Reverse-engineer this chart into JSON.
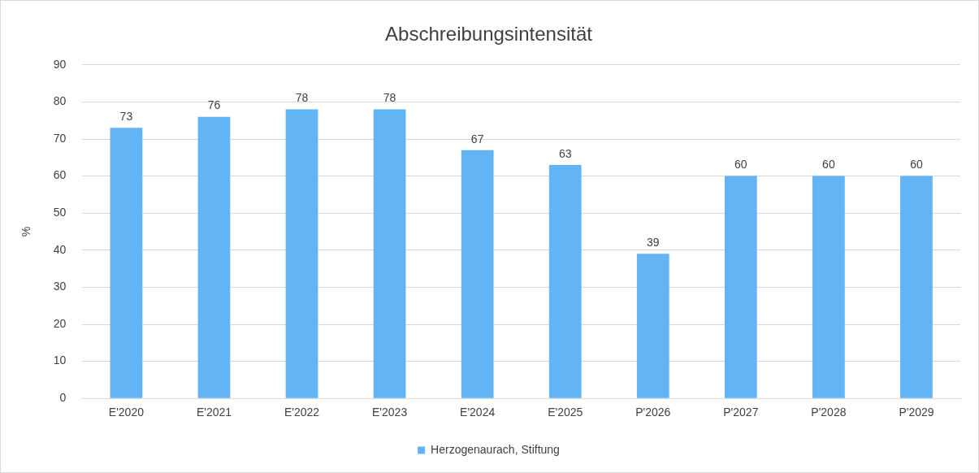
{
  "chart_data": {
    "type": "bar",
    "title": "Abschreibungsintensität",
    "ylabel": "%",
    "categories": [
      "E'2020",
      "E'2021",
      "E'2022",
      "E'2023",
      "E'2024",
      "E'2025",
      "P'2026",
      "P'2027",
      "P'2028",
      "P'2029"
    ],
    "series": [
      {
        "name": "Herzogenaurach, Stiftung",
        "color": "#63b4f5",
        "values": [
          73,
          76,
          78,
          78,
          67,
          63,
          39,
          60,
          60,
          60
        ]
      }
    ],
    "ylim": [
      0,
      90
    ],
    "yticks": [
      0,
      10,
      20,
      30,
      40,
      50,
      60,
      70,
      80,
      90
    ],
    "grid": "y",
    "legend": "bottom",
    "data_labels": true
  }
}
